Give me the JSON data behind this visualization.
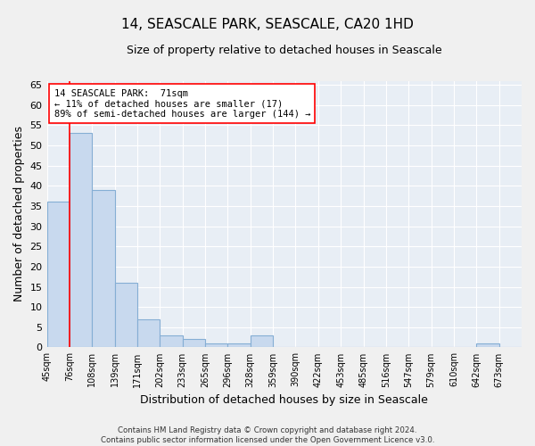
{
  "title": "14, SEASCALE PARK, SEASCALE, CA20 1HD",
  "subtitle": "Size of property relative to detached houses in Seascale",
  "xlabel": "Distribution of detached houses by size in Seascale",
  "ylabel": "Number of detached properties",
  "bar_color": "#c8d9ee",
  "bar_edge_color": "#85aed4",
  "background_color": "#e8eef5",
  "grid_color": "#ffffff",
  "fig_background": "#f0f0f0",
  "bins": [
    "45sqm",
    "76sqm",
    "108sqm",
    "139sqm",
    "171sqm",
    "202sqm",
    "233sqm",
    "265sqm",
    "296sqm",
    "328sqm",
    "359sqm",
    "390sqm",
    "422sqm",
    "453sqm",
    "485sqm",
    "516sqm",
    "547sqm",
    "579sqm",
    "610sqm",
    "642sqm",
    "673sqm"
  ],
  "values": [
    36,
    53,
    39,
    16,
    7,
    3,
    2,
    1,
    1,
    3,
    0,
    0,
    0,
    0,
    0,
    0,
    0,
    0,
    0,
    1,
    0
  ],
  "ylim": [
    0,
    66
  ],
  "yticks": [
    0,
    5,
    10,
    15,
    20,
    25,
    30,
    35,
    40,
    45,
    50,
    55,
    60,
    65
  ],
  "red_line_x": 1.0,
  "annotation_text": "14 SEASCALE PARK:  71sqm\n← 11% of detached houses are smaller (17)\n89% of semi-detached houses are larger (144) →",
  "footer_line1": "Contains HM Land Registry data © Crown copyright and database right 2024.",
  "footer_line2": "Contains public sector information licensed under the Open Government Licence v3.0."
}
